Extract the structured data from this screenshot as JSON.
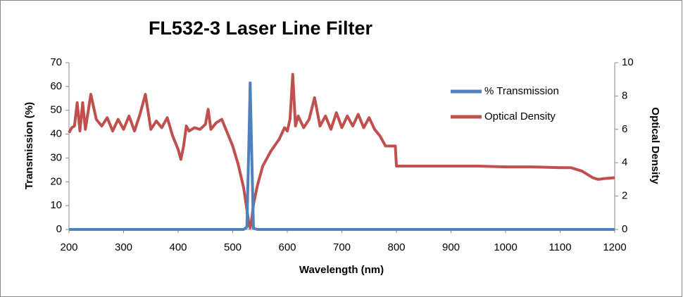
{
  "chart_data": {
    "type": "line",
    "title": "FL532-3 Laser Line Filter",
    "x_label": "Wavelength (nm)",
    "y_label": "Transmission (%)",
    "y2_label": "Optical Density",
    "x": [
      200,
      205,
      210,
      215,
      220,
      225,
      230,
      240,
      250,
      260,
      270,
      280,
      290,
      300,
      310,
      320,
      330,
      340,
      350,
      360,
      370,
      380,
      390,
      400,
      405,
      410,
      415,
      420,
      430,
      440,
      450,
      455,
      460,
      470,
      480,
      490,
      500,
      510,
      520,
      526,
      530,
      532,
      534,
      538,
      545,
      555,
      570,
      585,
      595,
      600,
      605,
      610,
      615,
      620,
      630,
      640,
      650,
      660,
      670,
      680,
      690,
      700,
      710,
      720,
      730,
      740,
      750,
      760,
      770,
      780,
      790,
      798,
      800,
      850,
      900,
      950,
      1000,
      1050,
      1100,
      1120,
      1140,
      1160,
      1170,
      1180,
      1200
    ],
    "series": [
      {
        "name": "% Transmission",
        "color": "#4f81bd",
        "axis": "y",
        "values": [
          0,
          0,
          0,
          0,
          0,
          0,
          0,
          0,
          0,
          0,
          0,
          0,
          0,
          0,
          0,
          0,
          0,
          0,
          0,
          0,
          0,
          0,
          0,
          0,
          0,
          0,
          0,
          0,
          0,
          0,
          0,
          0,
          0,
          0,
          0,
          0,
          0,
          0,
          0,
          1,
          40,
          61.5,
          40,
          0.5,
          0,
          0,
          0,
          0,
          0,
          0,
          0,
          0,
          0,
          0,
          0,
          0,
          0,
          0,
          0,
          0,
          0,
          0,
          0,
          0,
          0,
          0,
          0,
          0,
          0,
          0,
          0,
          0,
          0,
          0,
          0,
          0,
          0,
          0,
          0,
          0,
          0,
          0,
          0,
          0,
          0
        ]
      },
      {
        "name": "Optical Density",
        "color": "#c0504d",
        "axis": "y2",
        "values": [
          5.8,
          6.1,
          6.2,
          7.6,
          5.9,
          7.6,
          6.0,
          8.1,
          6.6,
          6.2,
          6.7,
          5.9,
          6.6,
          6.0,
          6.8,
          5.9,
          6.9,
          8.1,
          6.0,
          6.5,
          6.1,
          6.7,
          5.6,
          4.8,
          4.2,
          5.0,
          6.2,
          5.9,
          6.1,
          6.0,
          6.3,
          7.2,
          6.0,
          6.4,
          6.6,
          5.8,
          5.0,
          3.9,
          2.5,
          1.2,
          0.3,
          0.1,
          0.4,
          1.5,
          2.6,
          3.8,
          4.7,
          5.4,
          6.1,
          5.9,
          6.6,
          9.3,
          6.2,
          6.8,
          6.1,
          6.6,
          7.9,
          6.2,
          6.8,
          6.0,
          7.0,
          6.1,
          6.8,
          6.2,
          6.9,
          6.1,
          6.7,
          6.0,
          5.6,
          5.0,
          5.0,
          5.0,
          3.8,
          3.8,
          3.8,
          3.8,
          3.75,
          3.75,
          3.7,
          3.7,
          3.5,
          3.1,
          3.0,
          3.05,
          3.1
        ]
      }
    ],
    "xlim": [
      200,
      1200
    ],
    "xticks": [
      200,
      300,
      400,
      500,
      600,
      700,
      800,
      900,
      1000,
      1100,
      1200
    ],
    "ylim": [
      0,
      70
    ],
    "yticks": [
      0,
      10,
      20,
      30,
      40,
      50,
      60,
      70
    ],
    "y2lim": [
      0,
      10
    ],
    "y2ticks": [
      0,
      2,
      4,
      6,
      8,
      10
    ],
    "grid": false,
    "legend": "upper right"
  }
}
